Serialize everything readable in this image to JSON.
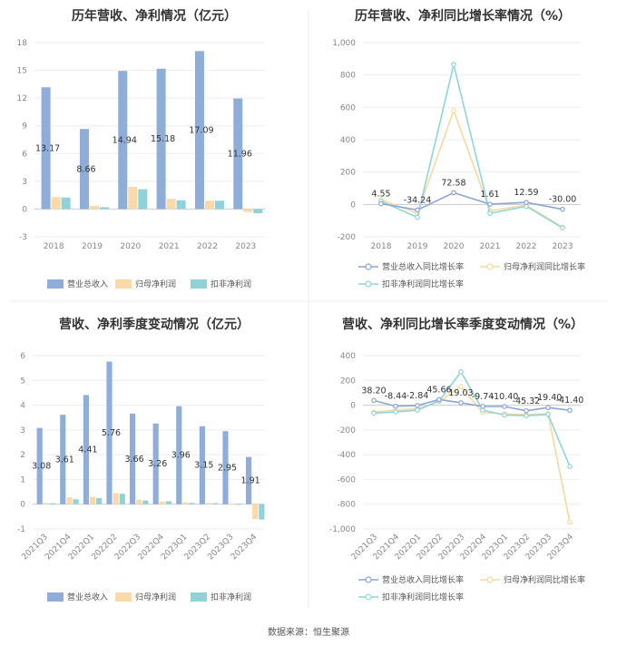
{
  "chart_data": [
    {
      "type": "bar",
      "title": "历年营收、净利情况（亿元）",
      "categories": [
        "2018",
        "2019",
        "2020",
        "2021",
        "2022",
        "2023"
      ],
      "series": [
        {
          "name": "营业总收入",
          "values": [
            13.17,
            8.66,
            14.94,
            15.18,
            17.09,
            11.96
          ],
          "color": "#8eadd9"
        },
        {
          "name": "归母净利润",
          "values": [
            1.3,
            0.35,
            2.4,
            1.1,
            0.9,
            -0.33
          ],
          "color": "#fbd9a8"
        },
        {
          "name": "扣非净利润",
          "values": [
            1.25,
            0.2,
            2.15,
            0.95,
            0.9,
            -0.45
          ],
          "color": "#8fd3d9"
        }
      ],
      "data_labels": [
        "13.17",
        "8.66",
        "14.94",
        "15.18",
        "17.09",
        "11.96"
      ],
      "yticks": [
        "18",
        "15",
        "12",
        "9",
        "6",
        "3",
        "0",
        "-3"
      ],
      "ylim": [
        -3,
        18
      ]
    },
    {
      "type": "line",
      "title": "历年营收、净利同比增长率情况（%）",
      "categories": [
        "2018",
        "2019",
        "2020",
        "2021",
        "2022",
        "2023"
      ],
      "series": [
        {
          "name": "营业总收入同比增长率",
          "values": [
            4.55,
            -34.24,
            72.58,
            1.61,
            12.59,
            -30.0
          ],
          "color": "#8ba5d6"
        },
        {
          "name": "归母净利润同比增长率",
          "values": [
            30,
            -55,
            580,
            -40,
            -5,
            -140
          ],
          "color": "#f9d8a0"
        },
        {
          "name": "扣非净利润同比增长率",
          "values": [
            20,
            -80,
            865,
            -55,
            -12,
            -145
          ],
          "color": "#8ed6dc"
        }
      ],
      "data_labels": [
        "4.55",
        "-34.24",
        "72.58",
        "1.61",
        "12.59",
        "-30.00"
      ],
      "yticks": [
        "1,000",
        "800",
        "600",
        "400",
        "200",
        "0",
        "-200"
      ],
      "ylim": [
        -200,
        1000
      ]
    },
    {
      "type": "bar",
      "title": "营收、净利季度变动情况（亿元）",
      "categories": [
        "2021Q3",
        "2021Q4",
        "2022Q1",
        "2022Q2",
        "2022Q3",
        "2022Q4",
        "2023Q1",
        "2023Q2",
        "2023Q3",
        "2023Q4"
      ],
      "series": [
        {
          "name": "营业总收入",
          "values": [
            3.08,
            3.61,
            4.41,
            5.76,
            3.66,
            3.26,
            3.96,
            3.15,
            2.95,
            1.91
          ],
          "color": "#8eadd9"
        },
        {
          "name": "归母净利润",
          "values": [
            0.05,
            0.28,
            0.3,
            0.45,
            0.18,
            0.1,
            0.08,
            0.05,
            0.03,
            -0.6
          ],
          "color": "#fbd9a8"
        },
        {
          "name": "扣非净利润",
          "values": [
            0.04,
            0.2,
            0.25,
            0.42,
            0.15,
            0.12,
            0.05,
            0.04,
            0.02,
            -0.62
          ],
          "color": "#8fd3d9"
        }
      ],
      "data_labels": [
        "3.08",
        "3.61",
        "4.41",
        "5.76",
        "3.66",
        "3.26",
        "3.96",
        "3.15",
        "2.95",
        "1.91"
      ],
      "yticks": [
        "6",
        "5",
        "4",
        "3",
        "2",
        "1",
        "0",
        "-1"
      ],
      "ylim": [
        -1,
        6
      ]
    },
    {
      "type": "line",
      "title": "营收、净利同比增长率季度变动情况（%）",
      "categories": [
        "2021Q3",
        "2021Q4",
        "2022Q1",
        "2022Q2",
        "2022Q3",
        "2022Q4",
        "2023Q1",
        "2023Q2",
        "2023Q3",
        "2023Q4"
      ],
      "series": [
        {
          "name": "营业总收入同比增长率",
          "values": [
            38.2,
            -8.44,
            -2.84,
            45.66,
            19.03,
            -9.74,
            -10.4,
            -45.32,
            -19.4,
            -41.4
          ],
          "color": "#8ba5d6"
        },
        {
          "name": "归母净利润同比增长率",
          "values": [
            -55,
            -40,
            -30,
            30,
            150,
            -60,
            -70,
            -75,
            -70,
            -945
          ],
          "color": "#f9d8a0"
        },
        {
          "name": "扣非净利润同比增长率",
          "values": [
            -65,
            -55,
            -40,
            35,
            270,
            -40,
            -80,
            -85,
            -75,
            -495
          ],
          "color": "#8ed6dc"
        }
      ],
      "data_labels": [
        "38.20",
        "-8.44",
        "-2.84",
        "45.66",
        "19.03",
        "-9.74",
        "-10.40",
        "-45.32",
        "-19.40",
        "-41.40"
      ],
      "yticks": [
        "400",
        "200",
        "0",
        "-200",
        "-400",
        "-600",
        "-800",
        "-1,000"
      ],
      "ylim": [
        -1000,
        400
      ]
    }
  ],
  "source": "数据来源：恒生聚源"
}
